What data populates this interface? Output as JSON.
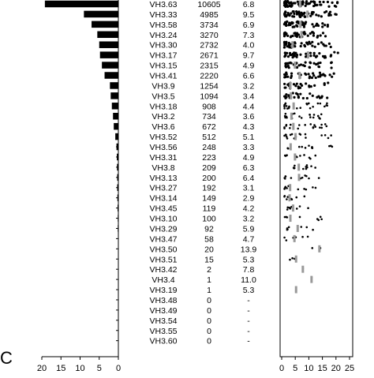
{
  "panel_label": "C",
  "chart_data": [
    {
      "type": "bar",
      "orientation": "horizontal",
      "direction": "leftward",
      "categories": [
        "VH3.63",
        "VH3.33",
        "VH3.58",
        "VH3.24",
        "VH3.30",
        "VH3.17",
        "VH3.15",
        "VH3.41",
        "VH3.9",
        "VH3.5",
        "VH3.18",
        "VH3.2",
        "VH3.6",
        "VH3.52",
        "VH3.56",
        "VH3.31",
        "VH3.8",
        "VH3.13",
        "VH3.27",
        "VH3.14",
        "VH3.45",
        "VH3.10",
        "VH3.29",
        "VH3.47",
        "VH3.50",
        "VH3.51",
        "VH3.42",
        "VH3.4",
        "VH3.19",
        "VH3.48",
        "VH3.49",
        "VH3.54",
        "VH3.55",
        "VH3.60"
      ],
      "values": [
        19.2,
        9.0,
        7.0,
        5.5,
        5.0,
        4.8,
        4.3,
        3.6,
        2.2,
        2.0,
        1.7,
        1.4,
        1.2,
        0.8,
        0.5,
        0.4,
        0.35,
        0.3,
        0.3,
        0.25,
        0.2,
        0.15,
        0.15,
        0.1,
        0.05,
        0.03,
        0.0,
        0.0,
        0.0,
        0.0,
        0.0,
        0.0,
        0.0,
        0.0
      ],
      "xlim": [
        0,
        20
      ],
      "xticks": [
        "20",
        "15",
        "10",
        "5",
        "0"
      ],
      "color": "#000000"
    },
    {
      "type": "table",
      "columns": [
        "gene",
        "count",
        "value"
      ],
      "rows": [
        [
          "VH3.63",
          "10605",
          "6.8"
        ],
        [
          "VH3.33",
          "4985",
          "9.5"
        ],
        [
          "VH3.58",
          "3734",
          "6.9"
        ],
        [
          "VH3.24",
          "3270",
          "7.3"
        ],
        [
          "VH3.30",
          "2732",
          "4.0"
        ],
        [
          "VH3.17",
          "2671",
          "9.7"
        ],
        [
          "VH3.15",
          "2315",
          "4.9"
        ],
        [
          "VH3.41",
          "2220",
          "6.6"
        ],
        [
          "VH3.9",
          "1254",
          "3.2"
        ],
        [
          "VH3.5",
          "1094",
          "3.4"
        ],
        [
          "VH3.18",
          "908",
          "4.4"
        ],
        [
          "VH3.2",
          "734",
          "3.6"
        ],
        [
          "VH3.6",
          "672",
          "4.3"
        ],
        [
          "VH3.52",
          "512",
          "5.1"
        ],
        [
          "VH3.56",
          "248",
          "3.3"
        ],
        [
          "VH3.31",
          "223",
          "4.9"
        ],
        [
          "VH3.8",
          "209",
          "6.3"
        ],
        [
          "VH3.13",
          "200",
          "6.4"
        ],
        [
          "VH3.27",
          "192",
          "3.1"
        ],
        [
          "VH3.14",
          "149",
          "2.9"
        ],
        [
          "VH3.45",
          "119",
          "4.2"
        ],
        [
          "VH3.10",
          "100",
          "3.2"
        ],
        [
          "VH3.29",
          "92",
          "5.9"
        ],
        [
          "VH3.47",
          "58",
          "4.7"
        ],
        [
          "VH3.50",
          "20",
          "13.9"
        ],
        [
          "VH3.51",
          "15",
          "5.3"
        ],
        [
          "VH3.42",
          "2",
          "7.8"
        ],
        [
          "VH3.4",
          "1",
          "11.0"
        ],
        [
          "VH3.19",
          "1",
          "5.3"
        ],
        [
          "VH3.48",
          "0",
          "-"
        ],
        [
          "VH3.49",
          "0",
          "-"
        ],
        [
          "VH3.54",
          "0",
          "-"
        ],
        [
          "VH3.55",
          "0",
          "-"
        ],
        [
          "VH3.60",
          "0",
          "-"
        ]
      ]
    },
    {
      "type": "scatter",
      "description_of_marks": "dot strip per row with grey median marker",
      "xlim": [
        0,
        25
      ],
      "xticks": [
        "0",
        "5",
        "10",
        "15",
        "20",
        "25"
      ],
      "medians": [
        6.8,
        9.5,
        6.9,
        7.3,
        4.0,
        9.7,
        4.9,
        6.6,
        3.2,
        3.4,
        4.4,
        3.6,
        4.3,
        5.1,
        3.3,
        4.9,
        6.3,
        6.4,
        3.1,
        2.9,
        4.2,
        3.2,
        5.9,
        4.7,
        13.9,
        5.3,
        7.8,
        11.0,
        5.3,
        null,
        null,
        null,
        null,
        null
      ],
      "ranges": [
        [
          1,
          22
        ],
        [
          1,
          21
        ],
        [
          1,
          18
        ],
        [
          1,
          17
        ],
        [
          1,
          19
        ],
        [
          1,
          21
        ],
        [
          1,
          19
        ],
        [
          1,
          20
        ],
        [
          1,
          18
        ],
        [
          1,
          18
        ],
        [
          1,
          17
        ],
        [
          1,
          16
        ],
        [
          1,
          17
        ],
        [
          1,
          19
        ],
        [
          1,
          19
        ],
        [
          1,
          15
        ],
        [
          1,
          13
        ],
        [
          1,
          14
        ],
        [
          1,
          14
        ],
        [
          1,
          18
        ],
        [
          2,
          10
        ],
        [
          1,
          15
        ],
        [
          2,
          12
        ],
        [
          1,
          11
        ],
        [
          10,
          17
        ],
        [
          3,
          6
        ],
        [
          6,
          9
        ],
        [
          11,
          11
        ],
        [
          5,
          5
        ],
        null,
        null,
        null,
        null,
        null
      ],
      "marker_color": "#000000",
      "median_color": "#999999"
    }
  ]
}
